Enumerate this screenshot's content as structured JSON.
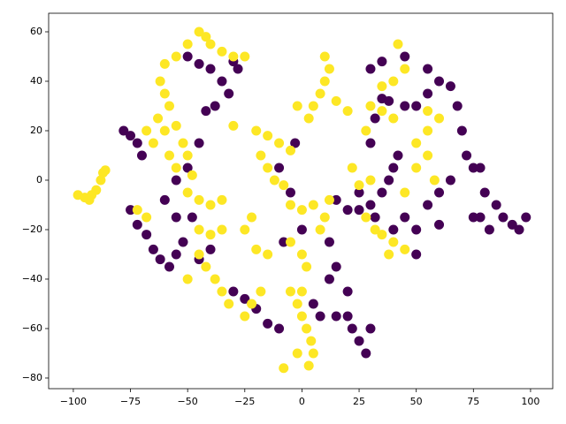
{
  "chart_data": {
    "type": "scatter",
    "xlim": [
      -110.8,
      109.7
    ],
    "ylim": [
      -84.3,
      67.5
    ],
    "xticks": [
      {
        "value": -100,
        "label": "−100"
      },
      {
        "value": -75,
        "label": "−75"
      },
      {
        "value": -50,
        "label": "−50"
      },
      {
        "value": -25,
        "label": "−25"
      },
      0,
      25,
      50,
      75,
      100
    ],
    "yticks": [
      {
        "value": -80,
        "label": "−80"
      },
      {
        "value": -60,
        "label": "−60"
      },
      {
        "value": -40,
        "label": "−40"
      },
      {
        "value": -20,
        "label": "−20"
      },
      0,
      20,
      40,
      60
    ],
    "series": [
      {
        "color": "#440154",
        "x": [
          -78,
          -75,
          -72,
          -70,
          -75,
          -72,
          -68,
          -65,
          -62,
          -58,
          -55,
          -52,
          -55,
          -60,
          -48,
          -55,
          -50,
          -45,
          -50,
          -45,
          -40,
          -35,
          -32,
          -38,
          -42,
          -30,
          -28,
          -45,
          -40,
          -30,
          -25,
          -20,
          -15,
          -10,
          -5,
          -3,
          -10,
          -8,
          0,
          5,
          8,
          12,
          15,
          20,
          12,
          15,
          20,
          22,
          25,
          28,
          30,
          15,
          20,
          25,
          30,
          32,
          35,
          38,
          40,
          30,
          32,
          35,
          38,
          45,
          50,
          55,
          30,
          35,
          45,
          55,
          60,
          65,
          68,
          70,
          72,
          75,
          78,
          80,
          85,
          88,
          92,
          95,
          98,
          78,
          82,
          75,
          55,
          60,
          50,
          45,
          40,
          50,
          60,
          65,
          25,
          42
        ],
        "y": [
          20,
          18,
          15,
          10,
          -12,
          -18,
          -22,
          -28,
          -32,
          -35,
          -30,
          -25,
          -15,
          -8,
          -15,
          0,
          5,
          15,
          50,
          47,
          45,
          40,
          35,
          30,
          28,
          48,
          45,
          -32,
          -28,
          -45,
          -48,
          -52,
          -58,
          -60,
          -5,
          15,
          5,
          -25,
          -20,
          -50,
          -55,
          -40,
          -35,
          -45,
          -25,
          -55,
          -55,
          -60,
          -65,
          -70,
          -60,
          -8,
          -12,
          -12,
          -10,
          -15,
          -5,
          0,
          5,
          15,
          25,
          33,
          32,
          30,
          30,
          35,
          45,
          48,
          50,
          45,
          40,
          38,
          30,
          20,
          10,
          5,
          5,
          -5,
          -10,
          -15,
          -18,
          -20,
          -15,
          -15,
          -20,
          -15,
          -10,
          -18,
          -20,
          -15,
          -20,
          -30,
          -5,
          0,
          -5,
          10
        ]
      },
      {
        "color": "#fde725",
        "x": [
          -98,
          -95,
          -92,
          -90,
          -88,
          -87,
          -86,
          -93,
          -60,
          -55,
          -50,
          -45,
          -42,
          -40,
          -35,
          -30,
          -25,
          -62,
          -60,
          -58,
          -63,
          -60,
          -55,
          -52,
          -50,
          -58,
          -65,
          -68,
          -55,
          -48,
          -50,
          -45,
          -40,
          -35,
          -45,
          -40,
          -35,
          -45,
          -42,
          -38,
          -35,
          -32,
          -50,
          -72,
          -68,
          -25,
          -22,
          -20,
          -15,
          -18,
          -22,
          -25,
          -20,
          -15,
          -10,
          -5,
          -15,
          -12,
          -18,
          -8,
          -30,
          -5,
          0,
          5,
          10,
          12,
          -5,
          0,
          2,
          8,
          -5,
          -2,
          0,
          2,
          4,
          5,
          3,
          -8,
          -2,
          0,
          10,
          12,
          10,
          8,
          5,
          15,
          20,
          3,
          -2,
          28,
          32,
          35,
          40,
          45,
          38,
          30,
          25,
          22,
          45,
          50,
          55,
          55,
          60,
          55,
          40,
          35,
          30,
          28,
          40,
          45,
          42,
          35,
          50,
          58
        ],
        "y": [
          -6,
          -7,
          -6,
          -4,
          0,
          3,
          4,
          -8,
          47,
          50,
          55,
          60,
          58,
          55,
          52,
          50,
          50,
          40,
          35,
          30,
          25,
          20,
          22,
          15,
          10,
          10,
          15,
          20,
          5,
          2,
          -5,
          -8,
          -10,
          -8,
          -20,
          -22,
          -20,
          -30,
          -35,
          -40,
          -45,
          -50,
          -40,
          -12,
          -15,
          -20,
          -15,
          -28,
          -30,
          -45,
          -50,
          -55,
          20,
          18,
          15,
          12,
          5,
          0,
          10,
          -2,
          22,
          -10,
          -12,
          -10,
          -15,
          -8,
          -25,
          -30,
          -35,
          -20,
          -45,
          -50,
          -55,
          -60,
          -65,
          -70,
          -75,
          -76,
          -70,
          -45,
          50,
          45,
          40,
          35,
          30,
          32,
          28,
          25,
          30,
          -15,
          -20,
          -22,
          -25,
          -28,
          -30,
          0,
          -2,
          5,
          -5,
          5,
          10,
          20,
          25,
          28,
          25,
          28,
          30,
          20,
          40,
          45,
          55,
          38,
          15,
          0
        ]
      }
    ]
  }
}
